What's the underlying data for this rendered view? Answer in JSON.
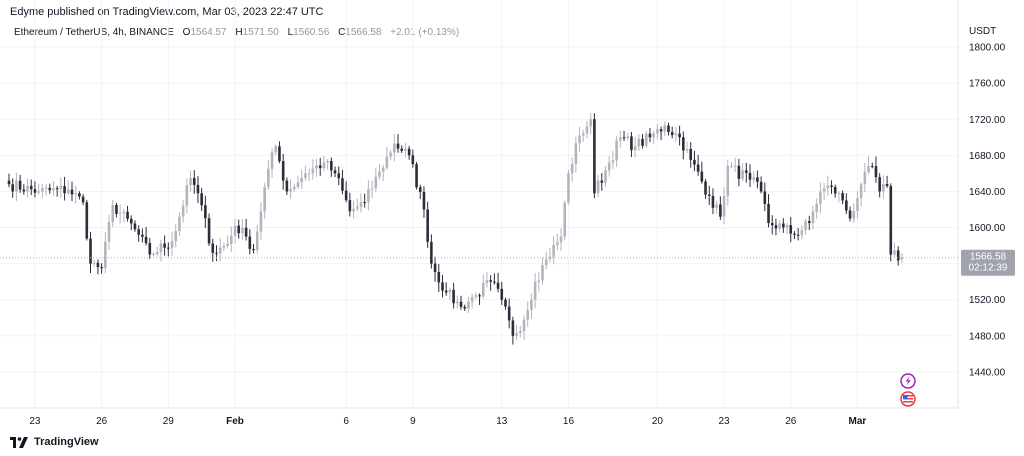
{
  "header": {
    "published_by": "Edyme published on TradingView.com, Mar 03, 2023 22:47 UTC"
  },
  "legend": {
    "symbol": "Ethereum / TetherUS, 4h, BINANCE",
    "open_label": "O",
    "open": "1564.57",
    "high_label": "H",
    "high": "1571.50",
    "low_label": "L",
    "low": "1560.56",
    "close_label": "C",
    "close": "1566.58",
    "change": "+2.01 (+0.13%)"
  },
  "footer": {
    "brand": "TradingView",
    "logo_icon": "tradingview-logo-icon"
  },
  "markers": [
    {
      "icon": "lightning-bolt-icon",
      "color": "#9c27b0"
    },
    {
      "icon": "us-flag-icon",
      "color": "#f23645"
    }
  ],
  "price_badge": {
    "price": "1566.58",
    "countdown": "02:12:39"
  },
  "colors": {
    "up": "#b2b5be",
    "down": "#2a2e39",
    "grid": "#f0f3fa",
    "badge": "#a0a3ab"
  },
  "chart_data": {
    "type": "candlestick",
    "title": "",
    "ylabel": "USDT",
    "ylim": [
      1400,
      1830
    ],
    "y_ticks": [
      1440,
      1480,
      1520,
      1560,
      1600,
      1640,
      1680,
      1720,
      1760,
      1800
    ],
    "y_tick_labels": [
      "1440.00",
      "1480.00",
      "1520.00",
      "1560.00",
      "1600.00",
      "1640.00",
      "1680.00",
      "1720.00",
      "1760.00",
      "1800.00"
    ],
    "x_labels": [
      {
        "label": "23",
        "index": 7,
        "bold": false
      },
      {
        "label": "26",
        "index": 25,
        "bold": false
      },
      {
        "label": "29",
        "index": 43,
        "bold": false
      },
      {
        "label": "Feb",
        "index": 61,
        "bold": true
      },
      {
        "label": "6",
        "index": 91,
        "bold": false
      },
      {
        "label": "9",
        "index": 109,
        "bold": false
      },
      {
        "label": "13",
        "index": 133,
        "bold": false
      },
      {
        "label": "16",
        "index": 151,
        "bold": false
      },
      {
        "label": "20",
        "index": 175,
        "bold": false
      },
      {
        "label": "23",
        "index": 193,
        "bold": false
      },
      {
        "label": "26",
        "index": 211,
        "bold": false
      },
      {
        "label": "Mar",
        "index": 229,
        "bold": true
      }
    ],
    "waypoints": [
      [
        0,
        1648
      ],
      [
        8,
        1640
      ],
      [
        16,
        1642
      ],
      [
        20,
        1628
      ],
      [
        22,
        1560
      ],
      [
        25,
        1555
      ],
      [
        28,
        1625
      ],
      [
        34,
        1598
      ],
      [
        38,
        1570
      ],
      [
        44,
        1585
      ],
      [
        49,
        1655
      ],
      [
        51,
        1638
      ],
      [
        55,
        1572
      ],
      [
        59,
        1582
      ],
      [
        61,
        1602
      ],
      [
        64,
        1590
      ],
      [
        66,
        1575
      ],
      [
        70,
        1665
      ],
      [
        72,
        1690
      ],
      [
        75,
        1640
      ],
      [
        80,
        1660
      ],
      [
        85,
        1672
      ],
      [
        88,
        1660
      ],
      [
        92,
        1618
      ],
      [
        96,
        1628
      ],
      [
        100,
        1662
      ],
      [
        104,
        1693
      ],
      [
        108,
        1680
      ],
      [
        112,
        1620
      ],
      [
        114,
        1560
      ],
      [
        118,
        1528
      ],
      [
        122,
        1512
      ],
      [
        126,
        1525
      ],
      [
        130,
        1540
      ],
      [
        133,
        1520
      ],
      [
        136,
        1480
      ],
      [
        139,
        1498
      ],
      [
        142,
        1540
      ],
      [
        145,
        1565
      ],
      [
        149,
        1590
      ],
      [
        151,
        1660
      ],
      [
        154,
        1702
      ],
      [
        157,
        1720
      ],
      [
        158,
        1638
      ],
      [
        162,
        1672
      ],
      [
        165,
        1700
      ],
      [
        169,
        1690
      ],
      [
        173,
        1700
      ],
      [
        177,
        1713
      ],
      [
        181,
        1700
      ],
      [
        184,
        1675
      ],
      [
        189,
        1635
      ],
      [
        192,
        1612
      ],
      [
        194,
        1668
      ],
      [
        200,
        1653
      ],
      [
        203,
        1640
      ],
      [
        205,
        1605
      ],
      [
        209,
        1600
      ],
      [
        212,
        1592
      ],
      [
        216,
        1605
      ],
      [
        219,
        1640
      ],
      [
        222,
        1645
      ],
      [
        225,
        1630
      ],
      [
        227,
        1610
      ],
      [
        230,
        1648
      ],
      [
        233,
        1668
      ],
      [
        235,
        1640
      ],
      [
        237,
        1646
      ],
      [
        238,
        1570
      ],
      [
        241,
        1566.58
      ]
    ],
    "last": {
      "open": 1564.57,
      "high": 1571.5,
      "low": 1560.56,
      "close": 1566.58
    }
  }
}
